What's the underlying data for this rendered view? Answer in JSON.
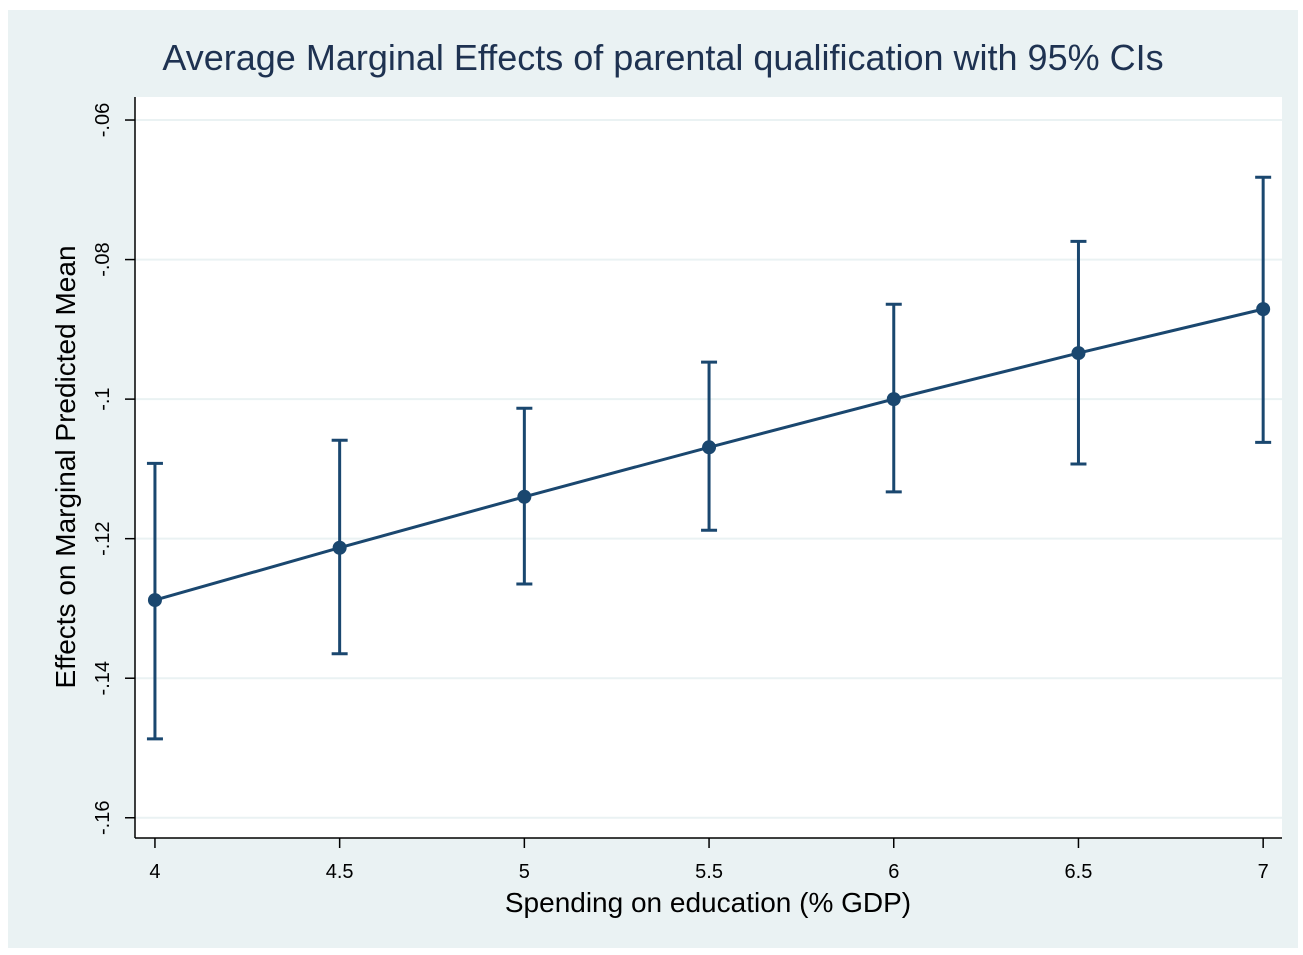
{
  "chart_data": {
    "type": "line",
    "title": "Average Marginal Effects of parental qualification with 95% CIs",
    "x_label": "Spending on education (% GDP)",
    "y_label": "Effects on Marginal Predicted Mean",
    "x": [
      4,
      4.5,
      5,
      5.5,
      6,
      6.5,
      7
    ],
    "values": [
      -0.1288,
      -0.1213,
      -0.114,
      -0.1069,
      -0.1,
      -0.0934,
      -0.0871
    ],
    "ci_lower": [
      -0.1487,
      -0.1365,
      -0.1265,
      -0.1188,
      -0.1133,
      -0.1093,
      -0.1062
    ],
    "ci_upper": [
      -0.1092,
      -0.1059,
      -0.1013,
      -0.0947,
      -0.0864,
      -0.0774,
      -0.0682
    ],
    "color": "#1a476f",
    "xlim": [
      3.946,
      7.051
    ],
    "ylim": [
      -0.1629,
      -0.0567
    ],
    "xticks": [
      4,
      4.5,
      5,
      5.5,
      6,
      6.5,
      7
    ],
    "yticks": [
      {
        "value": -0.06,
        "label": "-.06"
      },
      {
        "value": -0.08,
        "label": "-.08"
      },
      {
        "value": -0.1,
        "label": "-.1"
      },
      {
        "value": -0.12,
        "label": "-.12"
      },
      {
        "value": -0.14,
        "label": "-.14"
      },
      {
        "value": -0.16,
        "label": "-.16"
      }
    ],
    "grid": true
  }
}
